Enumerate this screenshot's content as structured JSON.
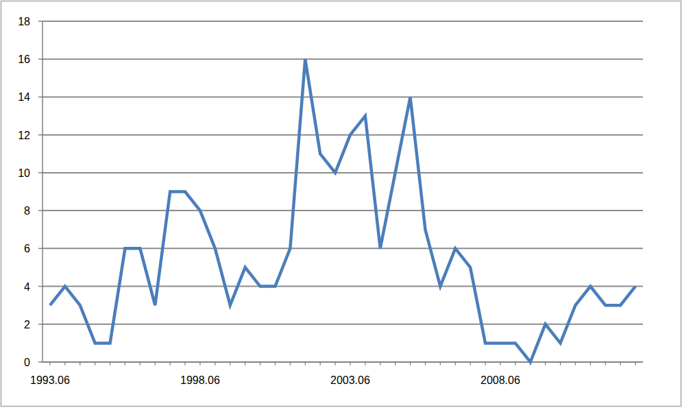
{
  "chart_data": {
    "type": "line",
    "categories": [
      "1993.06",
      null,
      null,
      null,
      null,
      null,
      null,
      null,
      null,
      null,
      "1998.06",
      null,
      null,
      null,
      null,
      null,
      null,
      null,
      null,
      null,
      "2003.06",
      null,
      null,
      null,
      null,
      null,
      null,
      null,
      null,
      null,
      "2008.06",
      null,
      null,
      null,
      null,
      null,
      null,
      null,
      null,
      null
    ],
    "values": [
      3,
      4,
      3,
      1,
      1,
      6,
      6,
      3,
      9,
      9,
      8,
      6,
      3,
      5,
      4,
      4,
      6,
      16,
      11,
      10,
      12,
      13,
      6,
      10,
      14,
      7,
      4,
      6,
      5,
      1,
      1,
      1,
      0,
      2,
      1,
      3,
      4,
      3,
      3,
      4
    ],
    "color": "#4a7ebb",
    "ylim": [
      0,
      18
    ],
    "yticks": [
      0,
      2,
      4,
      6,
      8,
      10,
      12,
      14,
      16,
      18
    ],
    "grid": true
  }
}
